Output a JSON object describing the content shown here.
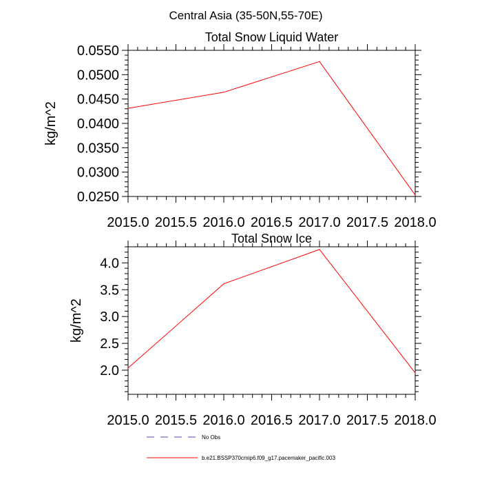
{
  "page_title": "Central Asia (35-50N,55-70E)",
  "chart_data": [
    {
      "type": "line",
      "title": "Total Snow Liquid Water",
      "xlabel": "",
      "ylabel": "kg/m^2",
      "xlim": [
        2015.0,
        2018.0
      ],
      "ylim": [
        0.025,
        0.055
      ],
      "x_ticks": [
        "2015.0",
        "2015.5",
        "2016.0",
        "2016.5",
        "2017.0",
        "2017.5",
        "2018.0"
      ],
      "y_ticks": [
        "0.0250",
        "0.0300",
        "0.0350",
        "0.0400",
        "0.0450",
        "0.0500",
        "0.0550"
      ],
      "series": [
        {
          "name": "b.e21.BSSP370cmip6.f09_g17.pacemaker_pacific.003",
          "color": "#ff0000",
          "x": [
            2015.0,
            2016.0,
            2017.0,
            2018.0
          ],
          "y": [
            0.0431,
            0.0464,
            0.0527,
            0.0253
          ]
        }
      ]
    },
    {
      "type": "line",
      "title": "Total Snow Ice",
      "xlabel": "",
      "ylabel": "kg/m^2",
      "xlim": [
        2015.0,
        2018.0
      ],
      "ylim": [
        1.55,
        4.3
      ],
      "x_ticks": [
        "2015.0",
        "2015.5",
        "2016.0",
        "2016.5",
        "2017.0",
        "2017.5",
        "2018.0"
      ],
      "y_ticks": [
        "2.0",
        "2.5",
        "3.0",
        "3.5",
        "4.0"
      ],
      "series": [
        {
          "name": "b.e21.BSSP370cmip6.f09_g17.pacemaker_pacific.003",
          "color": "#ff0000",
          "x": [
            2015.0,
            2016.0,
            2017.0,
            2018.0
          ],
          "y": [
            2.04,
            3.61,
            4.25,
            1.95
          ]
        }
      ]
    }
  ],
  "legend": [
    {
      "label": "No Obs",
      "color": "#4444cc",
      "style": "dashed"
    },
    {
      "label": "b.e21.BSSP370cmip6.f09_g17.pacemaker_pacific.003",
      "color": "#ff0000",
      "style": "solid"
    }
  ]
}
